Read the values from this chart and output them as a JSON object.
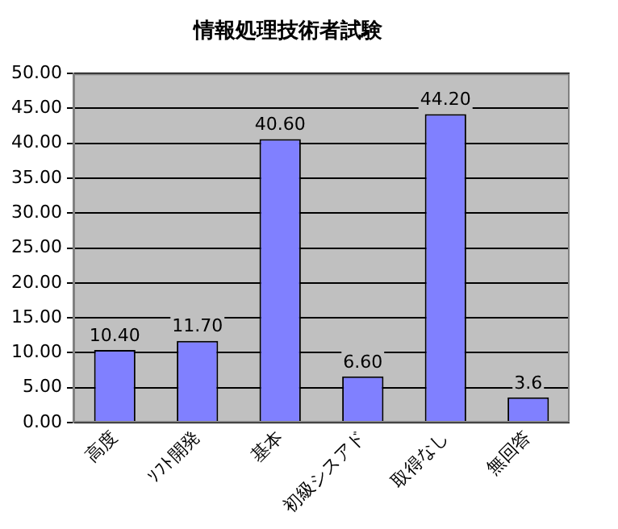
{
  "chart_data": {
    "type": "bar",
    "title": "情報処理技術者試験",
    "categories": [
      "高度",
      "ｿﾌﾄ開発",
      "基本",
      "初級シスアド",
      "取得なし",
      "無回答"
    ],
    "values": [
      10.4,
      11.7,
      40.6,
      6.6,
      44.2,
      3.6
    ],
    "value_labels": [
      "10.40",
      "11.70",
      "40.60",
      "6.60",
      "44.20",
      "3.6"
    ],
    "color": "#8080ff",
    "ylim": [
      0,
      50
    ],
    "yticks": [
      {
        "value": 0,
        "label": "0.00"
      },
      {
        "value": 5,
        "label": "5.00"
      },
      {
        "value": 10,
        "label": "10.00"
      },
      {
        "value": 15,
        "label": "15.00"
      },
      {
        "value": 20,
        "label": "20.00"
      },
      {
        "value": 25,
        "label": "25.00"
      },
      {
        "value": 30,
        "label": "30.00"
      },
      {
        "value": 35,
        "label": "35.00"
      },
      {
        "value": 40,
        "label": "40.00"
      },
      {
        "value": 45,
        "label": "45.00"
      },
      {
        "value": 50,
        "label": "50.00"
      }
    ],
    "grid": "y",
    "legend": false
  }
}
